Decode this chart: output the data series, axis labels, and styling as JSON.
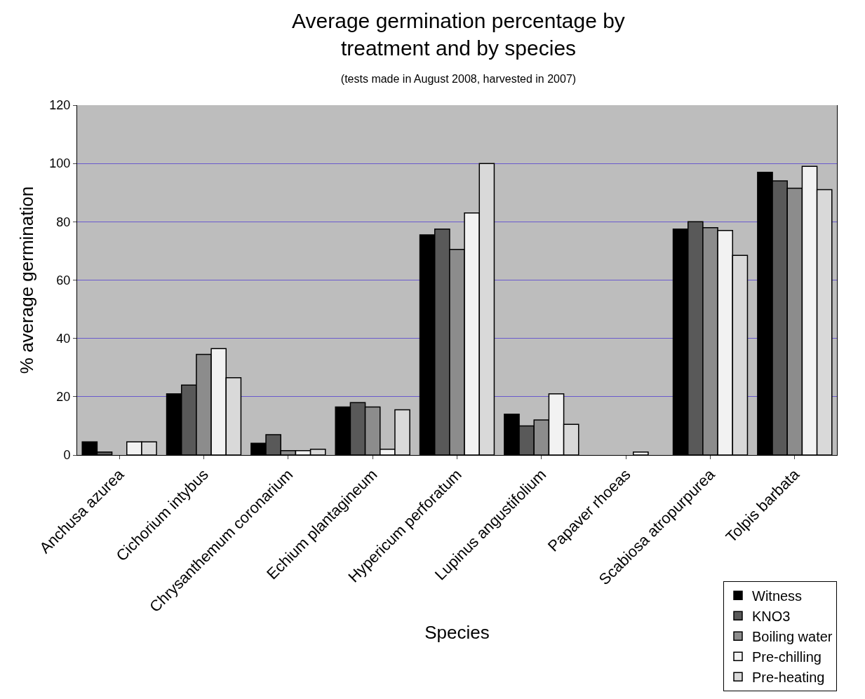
{
  "chart_data": {
    "type": "bar",
    "title": "Average germination percentage by treatment and by species",
    "subtitle": "(tests made in August 2008, harvested in 2007)",
    "xlabel": "Species",
    "ylabel": "% average germination",
    "categories": [
      "Anchusa azurea",
      "Cichorium intybus",
      "Chrysanthemum coronarium",
      "Echium plantagineum",
      "Hypericum perforatum",
      "Lupinus angustifolium",
      "Papaver rhoeas",
      "Scabiosa atropurpurea",
      "Tolpis barbata"
    ],
    "series": [
      {
        "name": "Witness",
        "color": "#000000",
        "values": [
          4.5,
          21,
          4,
          16.5,
          75.5,
          14,
          null,
          77.5,
          97
        ]
      },
      {
        "name": "KNO3",
        "color": "#595959",
        "values": [
          1,
          24,
          7,
          18,
          77.5,
          10,
          null,
          80,
          94
        ]
      },
      {
        "name": "Boiling water",
        "color": "#8c8c8c",
        "values": [
          null,
          34.5,
          1.5,
          16.5,
          70.5,
          12,
          null,
          78,
          91.5
        ]
      },
      {
        "name": "Pre-chilling",
        "color": "#f2f2f2",
        "values": [
          4.5,
          36.5,
          1.5,
          2,
          83,
          21,
          1,
          77,
          99
        ]
      },
      {
        "name": "Pre-heating",
        "color": "#d9d9d9",
        "values": [
          4.5,
          26.5,
          2,
          15.5,
          100,
          10.5,
          null,
          68.5,
          91
        ]
      }
    ],
    "ylim": [
      0,
      120
    ],
    "yticks": [
      0,
      20,
      40,
      60,
      80,
      100,
      120
    ],
    "grid": "y",
    "legend": "bottom right"
  }
}
